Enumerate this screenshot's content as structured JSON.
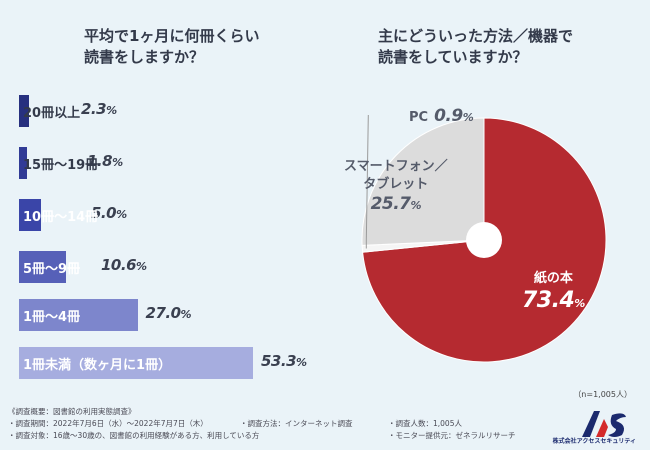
{
  "left_chart": {
    "title": "平均で1ヶ月に何冊くらい\n読書をしますか？",
    "bars": [
      {
        "label": "20冊以上",
        "value": 2.3,
        "display": "2.3",
        "color": "#27307f",
        "text": "dark"
      },
      {
        "label": "15冊〜19冊",
        "value": 1.8,
        "display": "1.8",
        "color": "#313b96",
        "text": "dark"
      },
      {
        "label": "10冊〜14冊",
        "value": 5.0,
        "display": "5.0",
        "color": "#3a45a8",
        "text": "light"
      },
      {
        "label": "5冊〜9冊",
        "value": 10.6,
        "display": "10.6",
        "color": "#5660b8",
        "text": "light"
      },
      {
        "label": "1冊〜4冊",
        "value": 27.0,
        "display": "27.0",
        "color": "#7d86cc",
        "text": "light"
      },
      {
        "label": "1冊未満（数ヶ月に1冊）",
        "value": 53.3,
        "display": "53.3",
        "color": "#a6addf",
        "text": "light"
      }
    ]
  },
  "right_chart": {
    "title": "主にどういった方法／機器で\n読書をしていますか？",
    "slices": [
      {
        "label": "紙の本",
        "value": 73.4,
        "display": "73.4",
        "color": "#b52a30"
      },
      {
        "label": "PC",
        "value": 0.9,
        "display": "0.9",
        "color": "#f5f5f5"
      },
      {
        "label": "スマートフォン／\nタブレット",
        "value": 25.7,
        "display": "25.7",
        "color": "#dcdcdc"
      }
    ]
  },
  "chart_data": [
    {
      "type": "bar",
      "title": "平均で1ヶ月に何冊くらい読書をしますか？",
      "categories": [
        "20冊以上",
        "15冊〜19冊",
        "10冊〜14冊",
        "5冊〜9冊",
        "1冊〜4冊",
        "1冊未満（数ヶ月に1冊）"
      ],
      "values": [
        2.3,
        1.8,
        5.0,
        10.6,
        27.0,
        53.3
      ],
      "unit": "%"
    },
    {
      "type": "pie",
      "title": "主にどういった方法／機器で読書をしていますか？",
      "categories": [
        "紙の本",
        "PC",
        "スマートフォン／タブレット"
      ],
      "values": [
        73.4,
        0.9,
        25.7
      ],
      "unit": "%"
    }
  ],
  "pct_sign": "%",
  "n_note": "（n=1,005人）",
  "footer": {
    "heading": "《調査概要：図書館の利用実態調査》",
    "period": "・調査期間：2022年7月6日（水）〜2022年7月7日（木）",
    "method": "・調査方法：インターネット調査",
    "count": "・調査人数：1,005人",
    "target": "・調査対象：16歳〜30歳の、図書館の利用経験がある方、利用している方",
    "monitor": "・モニター提供元：ゼネラルリサーチ",
    "logo_text": "株式会社アクセスセキュリティ"
  }
}
